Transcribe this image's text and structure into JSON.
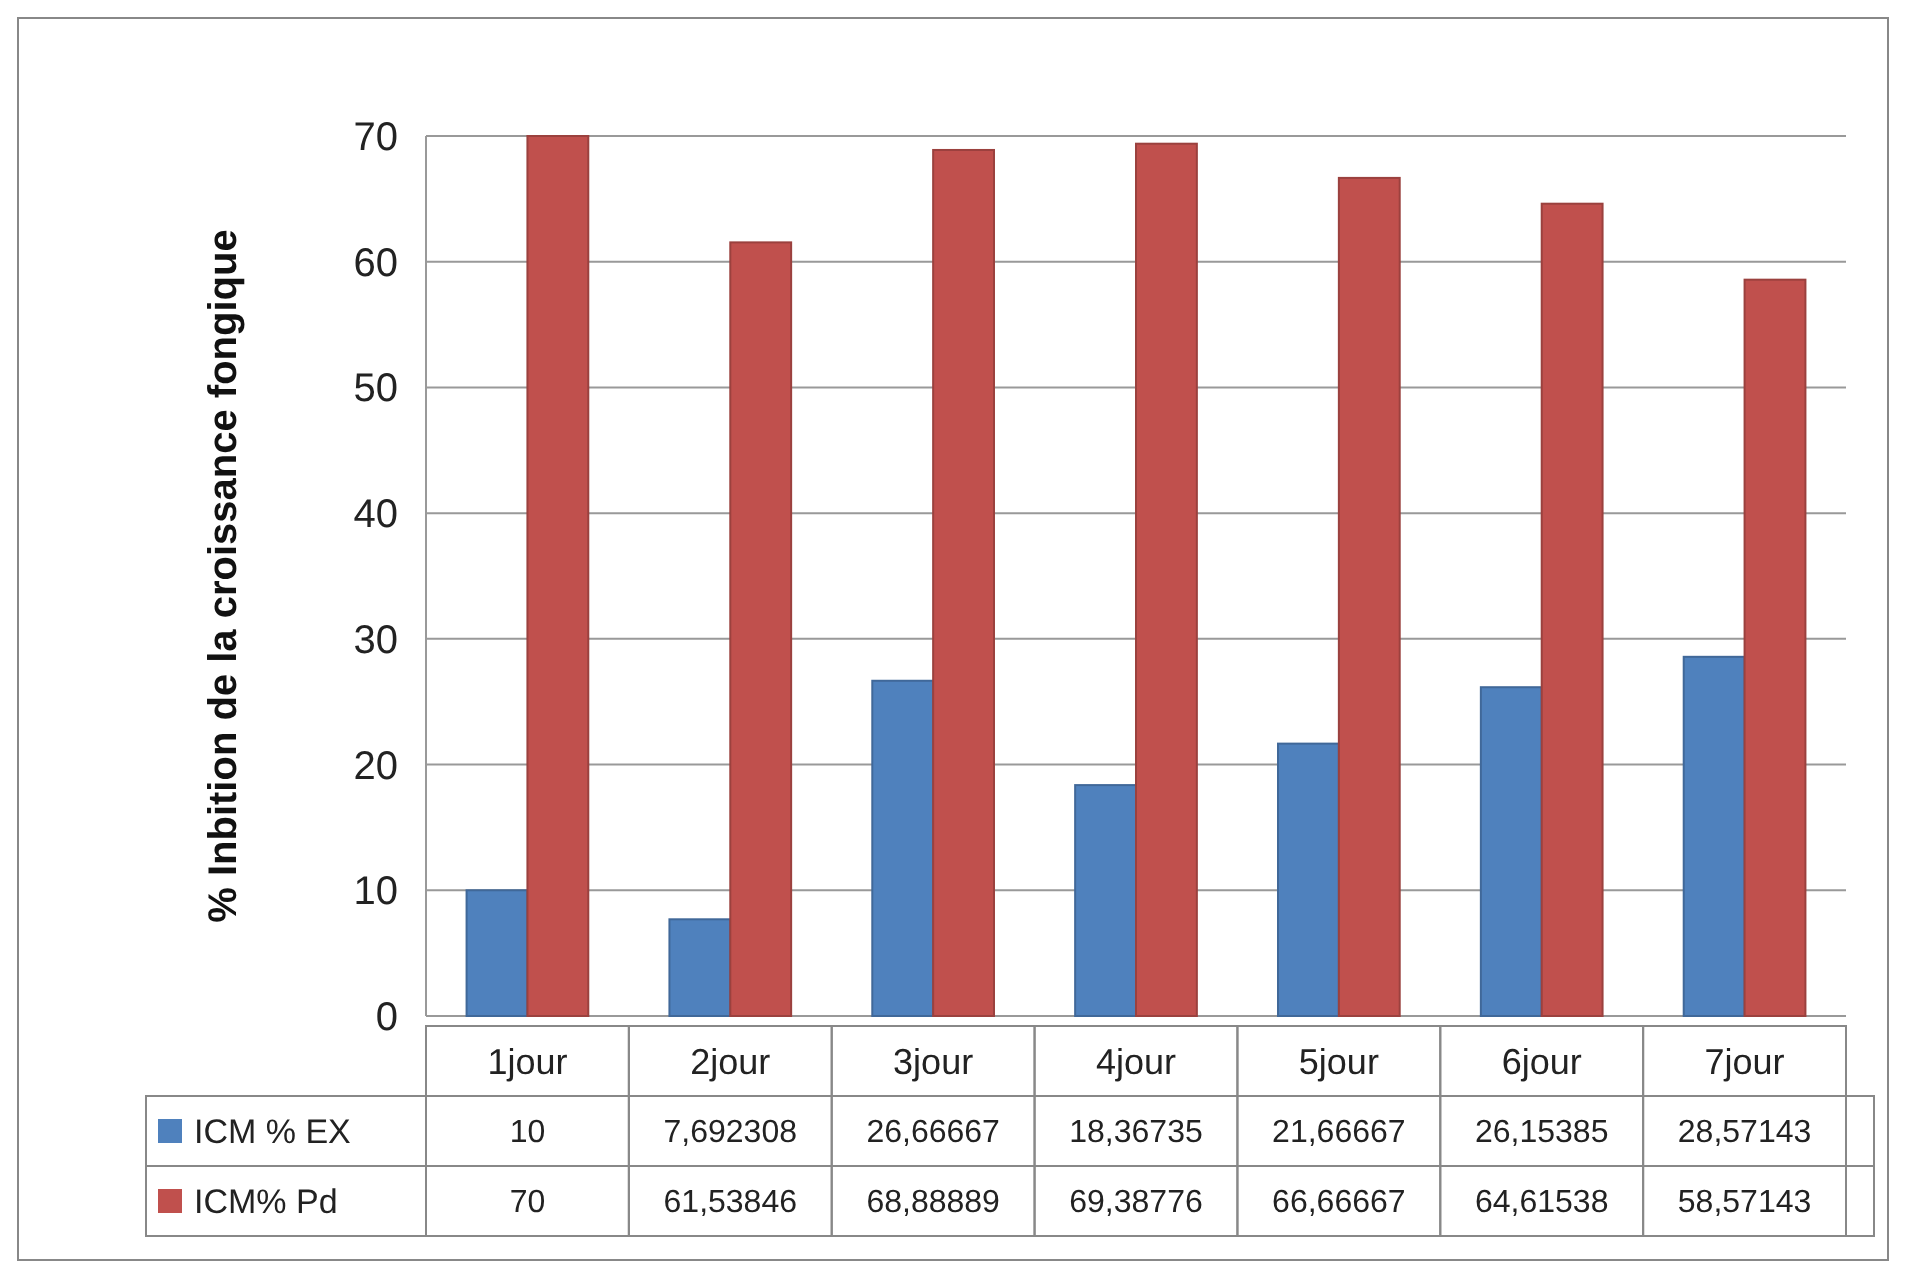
{
  "chart_data": {
    "type": "bar",
    "ylabel": "%  Inbition de la croissance fongique",
    "categories": [
      "1jour",
      "2jour",
      "3jour",
      "4jour",
      "5jour",
      "6jour",
      "7jour"
    ],
    "series": [
      {
        "name": "ICM % EX",
        "color": "#4f81bd",
        "values": [
          10,
          7.692308,
          26.66667,
          18.36735,
          21.66667,
          26.15385,
          28.57143
        ],
        "value_labels": [
          "10",
          "7,692308",
          "26,66667",
          "18,36735",
          "21,66667",
          "26,15385",
          "28,57143"
        ]
      },
      {
        "name": "ICM% Pd",
        "color": "#c0504d",
        "values": [
          70,
          61.53846,
          68.88889,
          69.38776,
          66.66667,
          64.61538,
          58.57143
        ],
        "value_labels": [
          "70",
          "61,53846",
          "68,88889",
          "69,38776",
          "66,66667",
          "64,61538",
          "58,57143"
        ]
      }
    ],
    "ylim": [
      0,
      70
    ],
    "yticks": [
      0,
      10,
      20,
      30,
      40,
      50,
      60,
      70
    ],
    "grid": "y",
    "legend": "bottom"
  }
}
